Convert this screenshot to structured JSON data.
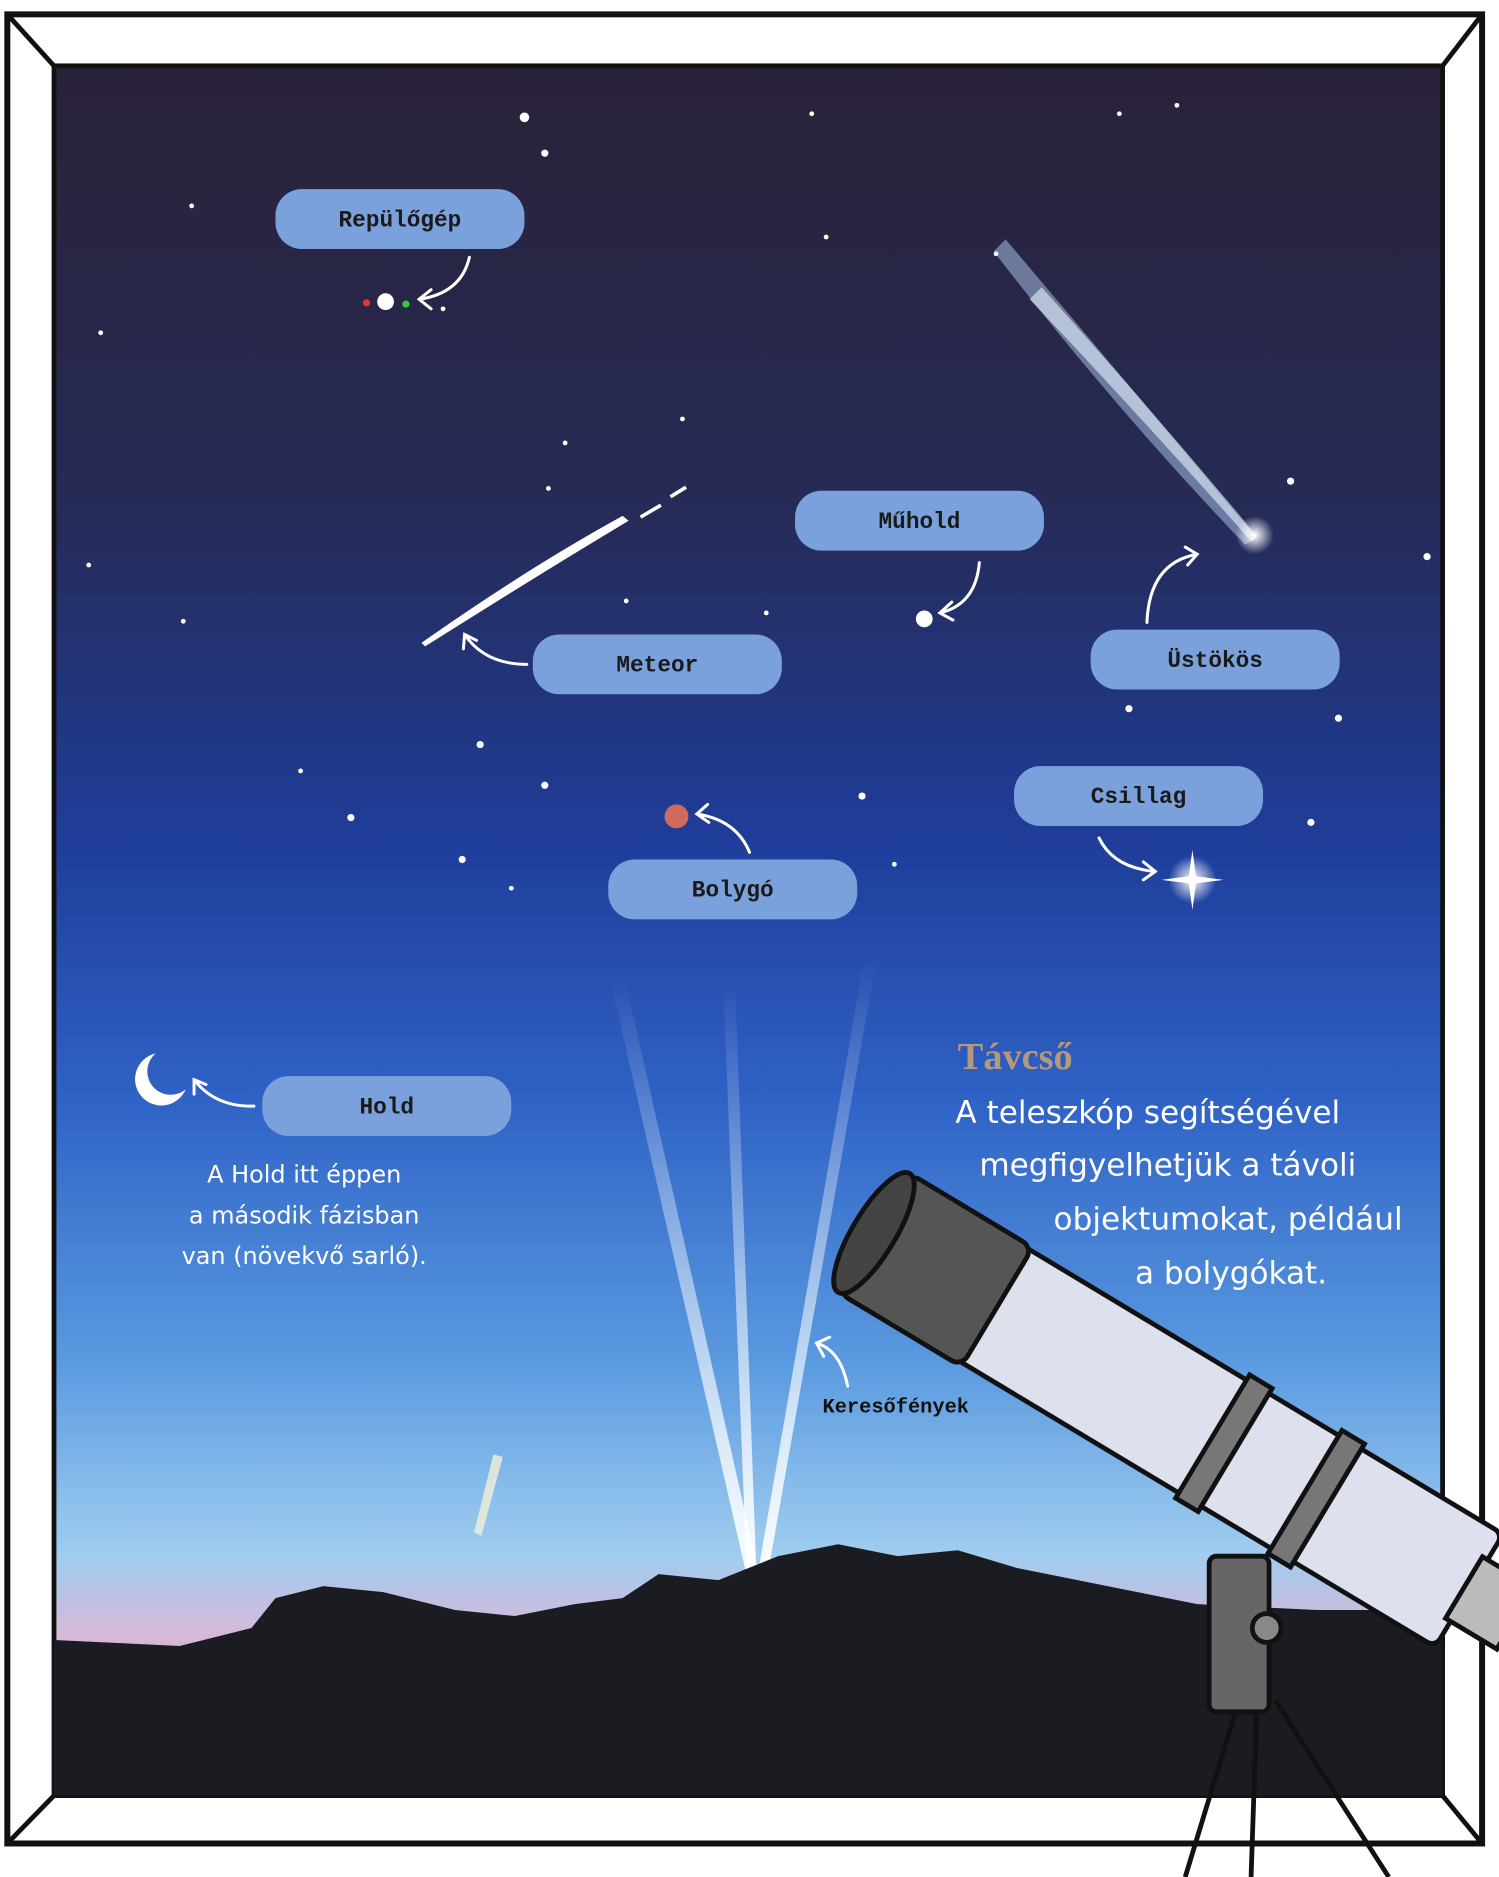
{
  "labels": {
    "airplane": "Repülőgép",
    "satellite": "Műhold",
    "meteor": "Meteor",
    "comet": "Üstökös",
    "star": "Csillag",
    "planet": "Bolygó",
    "moon": "Hold",
    "searchlights": "Keresőfények"
  },
  "moon_note": [
    "A Hold itt éppen",
    "a második fázisban",
    "van (növekvő sarló)."
  ],
  "telescope": {
    "title": "Távcső",
    "lines": [
      "A teleszkóp segítségével",
      "megfigyelhetjük a távoli",
      "objektumokat, például",
      "a bolygókat."
    ]
  }
}
